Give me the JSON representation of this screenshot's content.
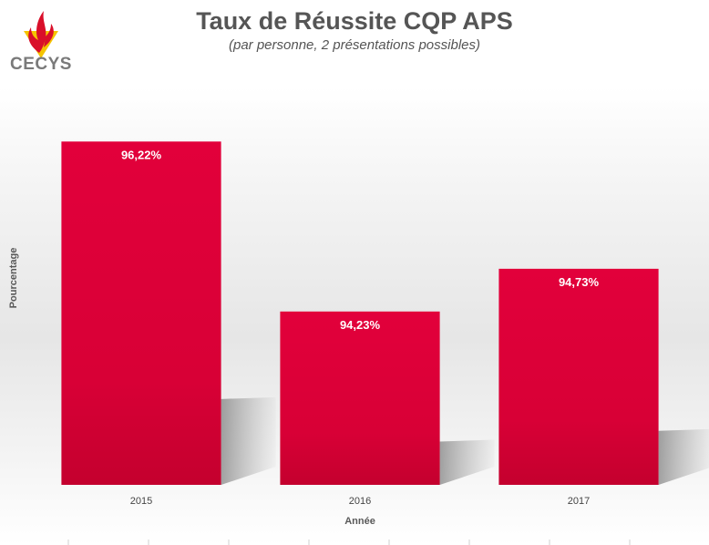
{
  "header": {
    "logo_text": "CECYS"
  },
  "colors": {
    "bar_top": "#e2003b",
    "bar_bottom": "#c8002f",
    "logo_red": "#d90f2a",
    "logo_yellow": "#f5c400",
    "text_gray": "#555555"
  },
  "chart_data": {
    "type": "bar",
    "title": "Taux de Réussite CQP APS",
    "subtitle": "(par personne, 2 présentations possibles)",
    "xlabel": "Année",
    "ylabel": "Pourcentage",
    "categories": [
      "2015",
      "2016",
      "2017"
    ],
    "values": [
      96.22,
      94.23,
      94.73
    ],
    "data_labels": [
      "96,22%",
      "94,23%",
      "94,73%"
    ],
    "ylim": [
      92.2,
      96.65
    ],
    "grid": false,
    "legend": "none"
  }
}
